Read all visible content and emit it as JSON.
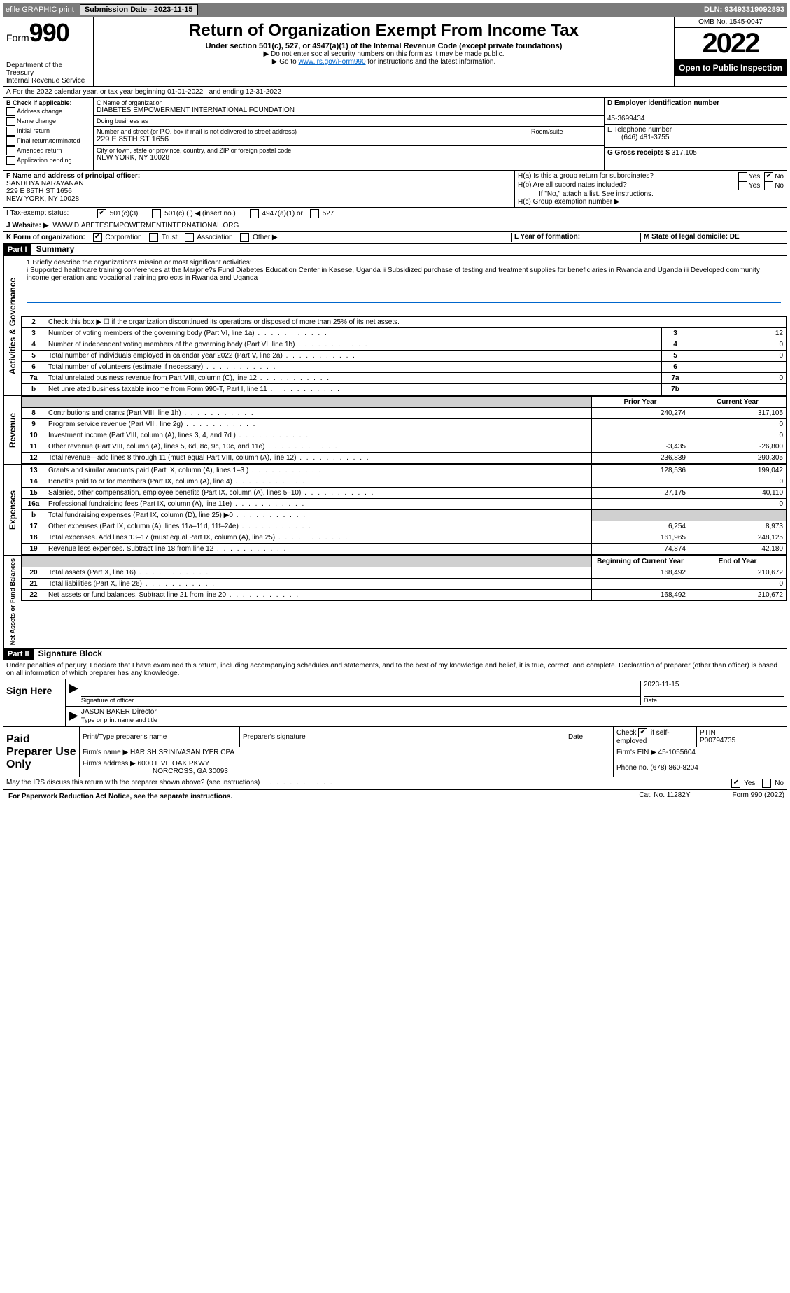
{
  "topbar": {
    "efile": "efile GRAPHIC print",
    "submission_label": "Submission Date - 2023-11-15",
    "dln_label": "DLN: 93493319092893"
  },
  "header": {
    "form_label": "Form",
    "form_number": "990",
    "dept": "Department of the Treasury",
    "irs": "Internal Revenue Service",
    "title": "Return of Organization Exempt From Income Tax",
    "subtitle": "Under section 501(c), 527, or 4947(a)(1) of the Internal Revenue Code (except private foundations)",
    "note1": "▶ Do not enter social security numbers on this form as it may be made public.",
    "note2_prefix": "▶ Go to ",
    "note2_link": "www.irs.gov/Form990",
    "note2_suffix": " for instructions and the latest information.",
    "omb": "OMB No. 1545-0047",
    "year": "2022",
    "open": "Open to Public Inspection"
  },
  "row_a": "A For the 2022 calendar year, or tax year beginning 01-01-2022    , and ending 12-31-2022",
  "col_b": {
    "label": "B Check if applicable:",
    "items": [
      "Address change",
      "Name change",
      "Initial return",
      "Final return/terminated",
      "Amended return",
      "Application pending"
    ]
  },
  "col_c": {
    "name_label": "C Name of organization",
    "name": "DIABETES EMPOWERMENT INTERNATIONAL FOUNDATION",
    "dba_label": "Doing business as",
    "dba": "",
    "street_label": "Number and street (or P.O. box if mail is not delivered to street address)",
    "street": "229 E 85TH ST 1656",
    "room_label": "Room/suite",
    "city_label": "City or town, state or province, country, and ZIP or foreign postal code",
    "city": "NEW YORK, NY  10028"
  },
  "col_d": {
    "label": "D Employer identification number",
    "value": "45-3699434",
    "e_label": "E Telephone number",
    "e_value": "(646) 481-3755",
    "g_label": "G Gross receipts $",
    "g_value": "317,105"
  },
  "col_f": {
    "label": "F  Name and address of principal officer:",
    "name": "SANDHYA NARAYANAN",
    "addr1": "229 E 85TH ST 1656",
    "addr2": "NEW YORK, NY  10028"
  },
  "col_h": {
    "ha_label": "H(a)  Is this a group return for subordinates?",
    "hb_label": "H(b)  Are all subordinates included?",
    "hb_note": "If \"No,\" attach a list. See instructions.",
    "hc_label": "H(c)  Group exemption number ▶",
    "yes": "Yes",
    "no": "No"
  },
  "row_i": {
    "label": "I    Tax-exempt status:",
    "opts": [
      "501(c)(3)",
      "501(c) (  ) ◀ (insert no.)",
      "4947(a)(1) or",
      "527"
    ]
  },
  "row_j": {
    "label": "J    Website: ▶",
    "value": "WWW.DIABETESEMPOWERMENTINTERNATIONAL.ORG"
  },
  "row_k": {
    "label": "K Form of organization:",
    "opts": [
      "Corporation",
      "Trust",
      "Association",
      "Other ▶"
    ],
    "l_label": "L Year of formation:",
    "l_value": "",
    "m_label": "M State of legal domicile: DE"
  },
  "part1": {
    "header": "Part I",
    "title": "Summary",
    "q1_label": "1",
    "q1_text": "Briefly describe the organization's mission or most significant activities:",
    "q1_value": "i Supported healthcare training conferences at the Marjorie?s Fund Diabetes Education Center in Kasese, Uganda ii Subsidized purchase of testing and treatment supplies for beneficiaries in Rwanda and Uganda iii Developed community income generation and vocational training projects in Rwanda and Uganda",
    "q2_text": "Check this box ▶ ☐  if the organization discontinued its operations or disposed of more than 25% of its net assets.",
    "governance_rows": [
      {
        "n": "3",
        "desc": "Number of voting members of the governing body (Part VI, line 1a)",
        "box": "3",
        "val": "12"
      },
      {
        "n": "4",
        "desc": "Number of independent voting members of the governing body (Part VI, line 1b)",
        "box": "4",
        "val": "0"
      },
      {
        "n": "5",
        "desc": "Total number of individuals employed in calendar year 2022 (Part V, line 2a)",
        "box": "5",
        "val": "0"
      },
      {
        "n": "6",
        "desc": "Total number of volunteers (estimate if necessary)",
        "box": "6",
        "val": ""
      },
      {
        "n": "7a",
        "desc": "Total unrelated business revenue from Part VIII, column (C), line 12",
        "box": "7a",
        "val": "0"
      },
      {
        "n": "b",
        "desc": "Net unrelated business taxable income from Form 990-T, Part I, line 11",
        "box": "7b",
        "val": ""
      }
    ],
    "col_headers": {
      "prior": "Prior Year",
      "current": "Current Year"
    },
    "revenue_rows": [
      {
        "n": "8",
        "desc": "Contributions and grants (Part VIII, line 1h)",
        "prior": "240,274",
        "cur": "317,105"
      },
      {
        "n": "9",
        "desc": "Program service revenue (Part VIII, line 2g)",
        "prior": "",
        "cur": "0"
      },
      {
        "n": "10",
        "desc": "Investment income (Part VIII, column (A), lines 3, 4, and 7d )",
        "prior": "",
        "cur": "0"
      },
      {
        "n": "11",
        "desc": "Other revenue (Part VIII, column (A), lines 5, 6d, 8c, 9c, 10c, and 11e)",
        "prior": "-3,435",
        "cur": "-26,800"
      },
      {
        "n": "12",
        "desc": "Total revenue—add lines 8 through 11 (must equal Part VIII, column (A), line 12)",
        "prior": "236,839",
        "cur": "290,305"
      }
    ],
    "expense_rows": [
      {
        "n": "13",
        "desc": "Grants and similar amounts paid (Part IX, column (A), lines 1–3 )",
        "prior": "128,536",
        "cur": "199,042"
      },
      {
        "n": "14",
        "desc": "Benefits paid to or for members (Part IX, column (A), line 4)",
        "prior": "",
        "cur": "0"
      },
      {
        "n": "15",
        "desc": "Salaries, other compensation, employee benefits (Part IX, column (A), lines 5–10)",
        "prior": "27,175",
        "cur": "40,110"
      },
      {
        "n": "16a",
        "desc": "Professional fundraising fees (Part IX, column (A), line 11e)",
        "prior": "",
        "cur": "0"
      },
      {
        "n": "b",
        "desc": "Total fundraising expenses (Part IX, column (D), line 25) ▶0",
        "prior": "shade",
        "cur": "shade"
      },
      {
        "n": "17",
        "desc": "Other expenses (Part IX, column (A), lines 11a–11d, 11f–24e)",
        "prior": "6,254",
        "cur": "8,973"
      },
      {
        "n": "18",
        "desc": "Total expenses. Add lines 13–17 (must equal Part IX, column (A), line 25)",
        "prior": "161,965",
        "cur": "248,125"
      },
      {
        "n": "19",
        "desc": "Revenue less expenses. Subtract line 18 from line 12",
        "prior": "74,874",
        "cur": "42,180"
      }
    ],
    "net_headers": {
      "beg": "Beginning of Current Year",
      "end": "End of Year"
    },
    "net_rows": [
      {
        "n": "20",
        "desc": "Total assets (Part X, line 16)",
        "prior": "168,492",
        "cur": "210,672"
      },
      {
        "n": "21",
        "desc": "Total liabilities (Part X, line 26)",
        "prior": "",
        "cur": "0"
      },
      {
        "n": "22",
        "desc": "Net assets or fund balances. Subtract line 21 from line 20",
        "prior": "168,492",
        "cur": "210,672"
      }
    ]
  },
  "part2": {
    "header": "Part II",
    "title": "Signature Block",
    "declaration": "Under penalties of perjury, I declare that I have examined this return, including accompanying schedules and statements, and to the best of my knowledge and belief, it is true, correct, and complete. Declaration of preparer (other than officer) is based on all information of which preparer has any knowledge."
  },
  "sign": {
    "label": "Sign Here",
    "sig_label": "Signature of officer",
    "date_label": "Date",
    "date": "2023-11-15",
    "name": "JASON BAKER Director",
    "name_label": "Type or print name and title"
  },
  "prep": {
    "label": "Paid Preparer Use Only",
    "h1": "Print/Type preparer's name",
    "h2": "Preparer's signature",
    "h3": "Date",
    "h4_label": "Check",
    "h4_suffix": "if self-employed",
    "h5_label": "PTIN",
    "h5_value": "P00794735",
    "firm_name_label": "Firm's name    ▶",
    "firm_name": "HARISH SRINIVASAN IYER CPA",
    "firm_ein_label": "Firm's EIN ▶",
    "firm_ein": "45-1055604",
    "firm_addr_label": "Firm's address ▶",
    "firm_addr1": "6000 LIVE OAK PKWY",
    "firm_addr2": "NORCROSS, GA  30093",
    "phone_label": "Phone no.",
    "phone": "(678) 860-8204"
  },
  "footer": {
    "discuss": "May the IRS discuss this return with the preparer shown above? (see instructions)",
    "yes": "Yes",
    "no": "No",
    "paperwork": "For Paperwork Reduction Act Notice, see the separate instructions.",
    "cat": "Cat. No. 11282Y",
    "form": "Form 990 (2022)"
  }
}
